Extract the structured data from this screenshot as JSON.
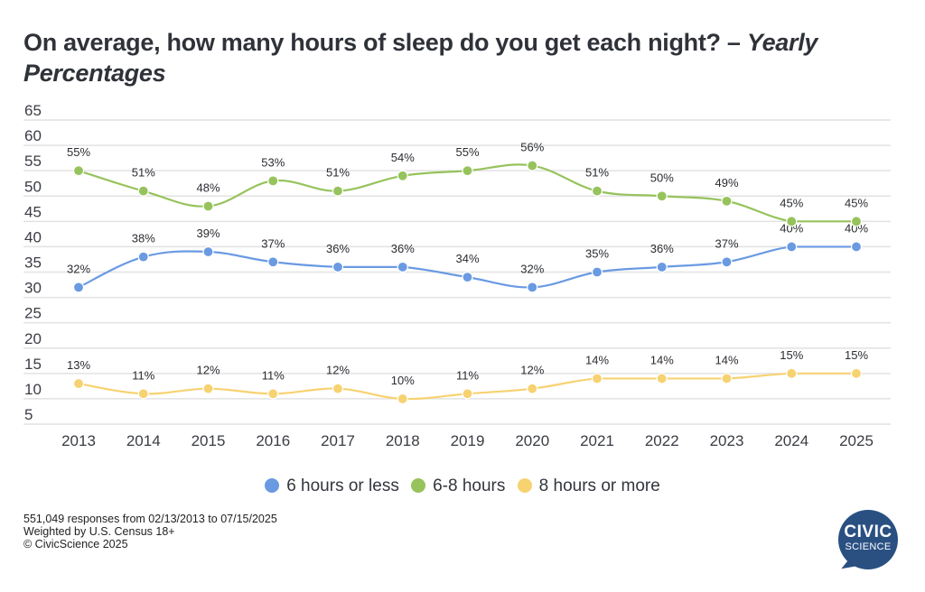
{
  "title": {
    "main": "On average, how many hours of sleep do you get each night? – ",
    "italic": "Yearly Percentages"
  },
  "colors": {
    "six_or_less": "#6a9ae2",
    "six_to_eight": "#96c35c",
    "eight_or_more": "#f7d271",
    "grid": "#e2e2e2",
    "logo": "#2a5082"
  },
  "chart_data": {
    "type": "line",
    "title": "On average, how many hours of sleep do you get each night? – Yearly Percentages",
    "xlabel": "",
    "ylabel": "",
    "ylim": [
      5,
      65
    ],
    "yticks": [
      65,
      60,
      55,
      50,
      45,
      40,
      35,
      30,
      25,
      20,
      15,
      10,
      5
    ],
    "grid": true,
    "legend_position": "bottom",
    "x": [
      "2013",
      "2014",
      "2015",
      "2016",
      "2017",
      "2018",
      "2019",
      "2020",
      "2021",
      "2022",
      "2023",
      "2024",
      "2025"
    ],
    "series": [
      {
        "name": "6 hours or less",
        "color": "#6a9ae2",
        "values": [
          32,
          38,
          39,
          37,
          36,
          36,
          34,
          32,
          35,
          36,
          37,
          40,
          40
        ],
        "labels": [
          "32%",
          "38%",
          "39%",
          "37%",
          "36%",
          "36%",
          "34%",
          "32%",
          "35%",
          "36%",
          "37%",
          "40%",
          "40%"
        ]
      },
      {
        "name": "6-8 hours",
        "color": "#96c35c",
        "values": [
          55,
          51,
          48,
          53,
          51,
          54,
          55,
          56,
          51,
          50,
          49,
          45,
          45
        ],
        "labels": [
          "55%",
          "51%",
          "48%",
          "53%",
          "51%",
          "54%",
          "55%",
          "56%",
          "51%",
          "50%",
          "49%",
          "45%",
          "45%"
        ]
      },
      {
        "name": "8 hours or more",
        "color": "#f7d271",
        "values": [
          13,
          11,
          12,
          11,
          12,
          10,
          11,
          12,
          14,
          14,
          14,
          15,
          15
        ],
        "labels": [
          "13%",
          "11%",
          "12%",
          "11%",
          "12%",
          "10%",
          "11%",
          "12%",
          "14%",
          "14%",
          "14%",
          "15%",
          "15%"
        ]
      }
    ]
  },
  "legend": [
    {
      "label": "6 hours or less",
      "color": "#6a9ae2"
    },
    {
      "label": "6-8 hours",
      "color": "#96c35c"
    },
    {
      "label": "8 hours or more",
      "color": "#f7d271"
    }
  ],
  "footer": {
    "line1": "551,049 responses from 02/13/2013 to 07/15/2025",
    "line2": "Weighted by U.S. Census 18+",
    "line3": "© CivicScience 2025"
  },
  "logo": {
    "line1": "CIVIC",
    "line2": "SCIENCE"
  }
}
